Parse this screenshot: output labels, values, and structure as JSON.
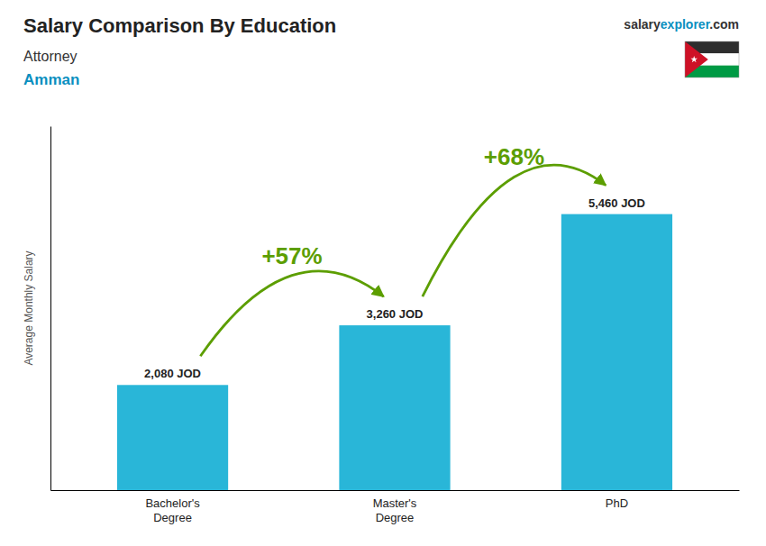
{
  "chart_data": {
    "type": "bar",
    "title": "Salary Comparison By Education",
    "subtitle": [
      "Attorney",
      "Amman"
    ],
    "ylabel": "Average Monthly Salary",
    "categories": [
      "Bachelor's\nDegree",
      "Master's\nDegree",
      "PhD"
    ],
    "values": [
      2080,
      3260,
      5460
    ],
    "value_labels": [
      "2,080 JOD",
      "3,260 JOD",
      "5,460 JOD"
    ],
    "data_labels": true,
    "color": "#29b6d8",
    "ylim": [
      0,
      7200
    ],
    "tick_labels": "x",
    "annotations": [
      {
        "text": "+57%"
      },
      {
        "text": "+68%"
      },
      {
        "text": "salary"
      },
      {
        "text": "explorer"
      },
      {
        "text": ".com"
      }
    ]
  }
}
